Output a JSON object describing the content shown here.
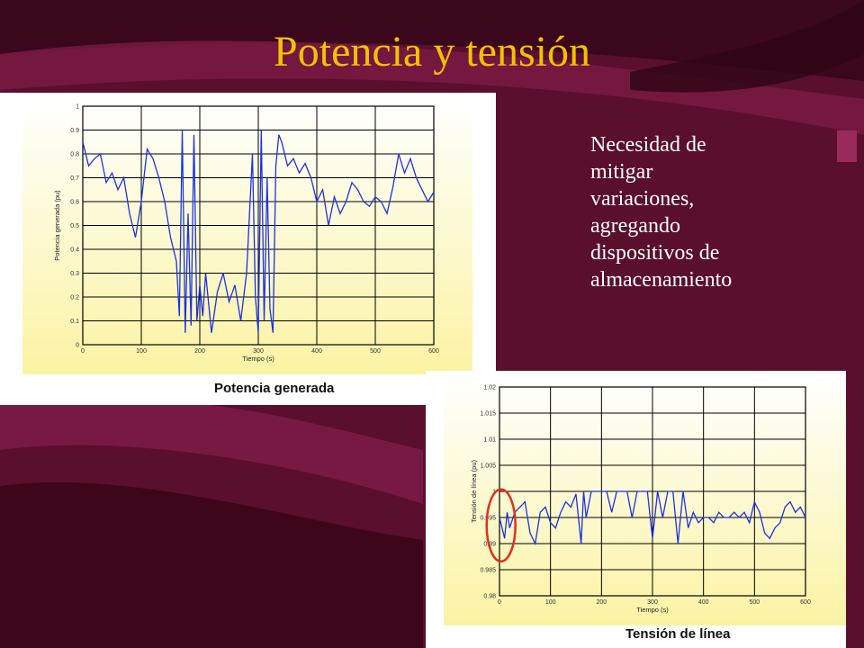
{
  "slide": {
    "title": "Potencia y tensión",
    "bullet_lines": [
      "Necesidad de",
      "mitigar",
      "variaciones,",
      "agregando",
      "dispositivos de",
      "almacenamiento"
    ],
    "colors": {
      "background": "#5a0f2e",
      "title": "#f2c200",
      "text": "#ffffff",
      "highlight_circle": "#e0301e",
      "series": "#1a32e6",
      "plot_fill_top": "#ffffff",
      "plot_fill_bottom": "#fbf3a3"
    }
  },
  "chart_data": [
    {
      "type": "line",
      "caption": "Potencia generada",
      "xlabel": "Tiempo (s)",
      "ylabel": "Potencia generada (pu)",
      "xlim": [
        0,
        600
      ],
      "ylim": [
        0,
        1
      ],
      "xticks": [
        "0",
        "100",
        "200",
        "300",
        "400",
        "500",
        "600"
      ],
      "yticks": [
        "0",
        "0.1",
        "0.2",
        "0.3",
        "0.4",
        "0.5",
        "0.6",
        "0.7",
        "0.8",
        "0.9",
        "1"
      ],
      "grid": true,
      "series": [
        {
          "x": [
            0,
            10,
            20,
            30,
            40,
            50,
            60,
            70,
            80,
            90,
            100,
            110,
            120,
            130,
            140,
            150,
            160,
            165,
            170,
            175,
            180,
            185,
            190,
            195,
            200,
            205,
            210,
            220,
            230,
            240,
            250,
            260,
            270,
            280,
            290,
            295,
            300,
            305,
            310,
            315,
            320,
            325,
            330,
            335,
            340,
            350,
            360,
            370,
            380,
            390,
            400,
            410,
            420,
            430,
            440,
            450,
            460,
            470,
            480,
            490,
            500,
            510,
            520,
            530,
            540,
            550,
            560,
            570,
            580,
            590,
            600
          ],
          "y": [
            0.85,
            0.75,
            0.78,
            0.8,
            0.68,
            0.72,
            0.65,
            0.7,
            0.55,
            0.45,
            0.6,
            0.82,
            0.78,
            0.7,
            0.6,
            0.45,
            0.35,
            0.12,
            0.9,
            0.05,
            0.55,
            0.08,
            0.88,
            0.1,
            0.25,
            0.12,
            0.3,
            0.05,
            0.22,
            0.3,
            0.18,
            0.25,
            0.1,
            0.3,
            0.8,
            0.2,
            0.05,
            0.9,
            0.1,
            0.7,
            0.15,
            0.05,
            0.75,
            0.88,
            0.85,
            0.75,
            0.78,
            0.72,
            0.76,
            0.7,
            0.6,
            0.65,
            0.5,
            0.62,
            0.55,
            0.6,
            0.68,
            0.65,
            0.6,
            0.58,
            0.62,
            0.6,
            0.55,
            0.66,
            0.8,
            0.72,
            0.78,
            0.7,
            0.65,
            0.6,
            0.64
          ]
        }
      ]
    },
    {
      "type": "line",
      "caption": "Tensión de línea",
      "xlabel": "Tiempo (s)",
      "ylabel": "Tensión de línea (pu)",
      "xlim": [
        0,
        600
      ],
      "ylim": [
        0.98,
        1.02
      ],
      "xticks": [
        "0",
        "100",
        "200",
        "300",
        "400",
        "500",
        "600"
      ],
      "yticks": [
        "0.98",
        "0.985",
        "0.99",
        "0.995",
        "1",
        "1.005",
        "1.01",
        "1.015",
        "1.02"
      ],
      "grid": true,
      "annotation": "circle-around-first-dip",
      "series": [
        {
          "x": [
            0,
            10,
            15,
            20,
            30,
            40,
            50,
            60,
            70,
            80,
            90,
            100,
            110,
            120,
            130,
            140,
            150,
            160,
            165,
            170,
            180,
            190,
            200,
            210,
            220,
            230,
            240,
            250,
            260,
            270,
            280,
            290,
            300,
            310,
            320,
            330,
            340,
            350,
            360,
            370,
            380,
            390,
            400,
            410,
            420,
            430,
            440,
            450,
            460,
            470,
            480,
            490,
            500,
            510,
            520,
            530,
            540,
            550,
            560,
            570,
            580,
            590,
            600
          ],
          "y": [
            0.995,
            0.991,
            0.996,
            0.993,
            0.996,
            0.997,
            0.998,
            0.992,
            0.99,
            0.996,
            0.997,
            0.994,
            0.993,
            0.996,
            0.998,
            0.997,
            0.9995,
            0.99,
            1.0,
            0.995,
            1.0,
            1.0,
            1.0,
            1.0,
            0.996,
            1.0,
            1.0,
            1.0,
            0.995,
            1.0,
            1.0,
            1.0,
            0.991,
            1.0,
            0.995,
            1.0,
            1.0,
            0.99,
            1.0,
            0.993,
            0.996,
            0.994,
            0.995,
            0.995,
            0.994,
            0.996,
            0.995,
            0.995,
            0.996,
            0.995,
            0.996,
            0.994,
            0.998,
            0.996,
            0.992,
            0.991,
            0.993,
            0.994,
            0.997,
            0.998,
            0.996,
            0.997,
            0.995
          ]
        }
      ]
    }
  ]
}
